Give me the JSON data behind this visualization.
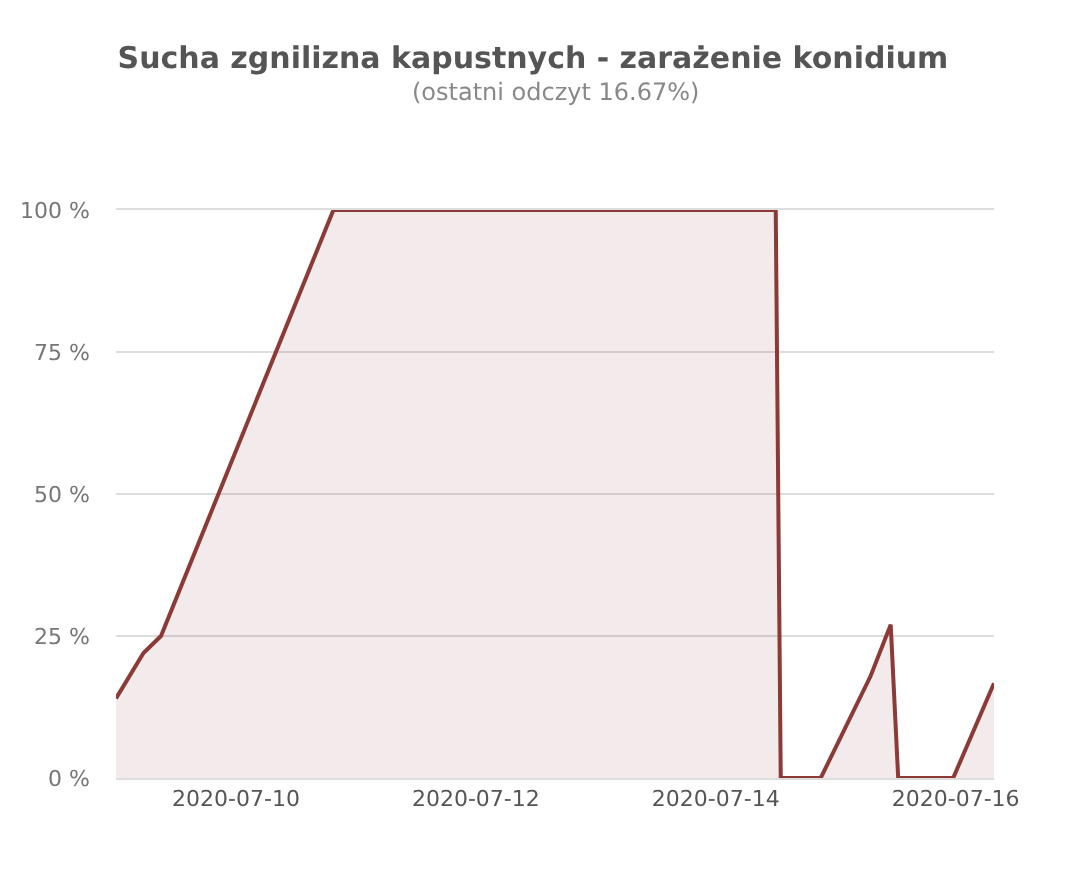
{
  "chart_data": {
    "type": "area",
    "title": "Sucha zgnilizna kapustnych - zarażenie konidium",
    "subtitle": "(ostatni odczyt 16.67%)",
    "x": [
      "2020-07-09T00:00",
      "2020-07-09T05:30",
      "2020-07-09T09:00",
      "2020-07-10T19:30",
      "2020-07-14T12:00",
      "2020-07-14T13:00",
      "2020-07-14T21:00",
      "2020-07-15T07:00",
      "2020-07-15T11:00",
      "2020-07-15T12:30",
      "2020-07-15T23:30",
      "2020-07-16T07:40"
    ],
    "series": [
      {
        "color": "#8b3a36",
        "values": [
          14,
          22,
          25,
          100,
          100,
          0,
          0,
          18,
          27,
          0,
          0,
          16.67
        ]
      }
    ],
    "xlim": [
      "2020-07-09T00:00",
      "2020-07-16T07:40"
    ],
    "xticks": [
      {
        "value": "2020-07-10",
        "label": "2020-07-10"
      },
      {
        "value": "2020-07-12",
        "label": "2020-07-12"
      },
      {
        "value": "2020-07-14",
        "label": "2020-07-14"
      },
      {
        "value": "2020-07-16",
        "label": "2020-07-16"
      }
    ],
    "ylim": [
      0,
      100
    ],
    "yticks": [
      {
        "value": 0,
        "label": "0 %"
      },
      {
        "value": 25,
        "label": "25 %"
      },
      {
        "value": 50,
        "label": "50 %"
      },
      {
        "value": 75,
        "label": "75 %"
      },
      {
        "value": 100,
        "label": "100 %"
      }
    ],
    "grid": "y"
  }
}
